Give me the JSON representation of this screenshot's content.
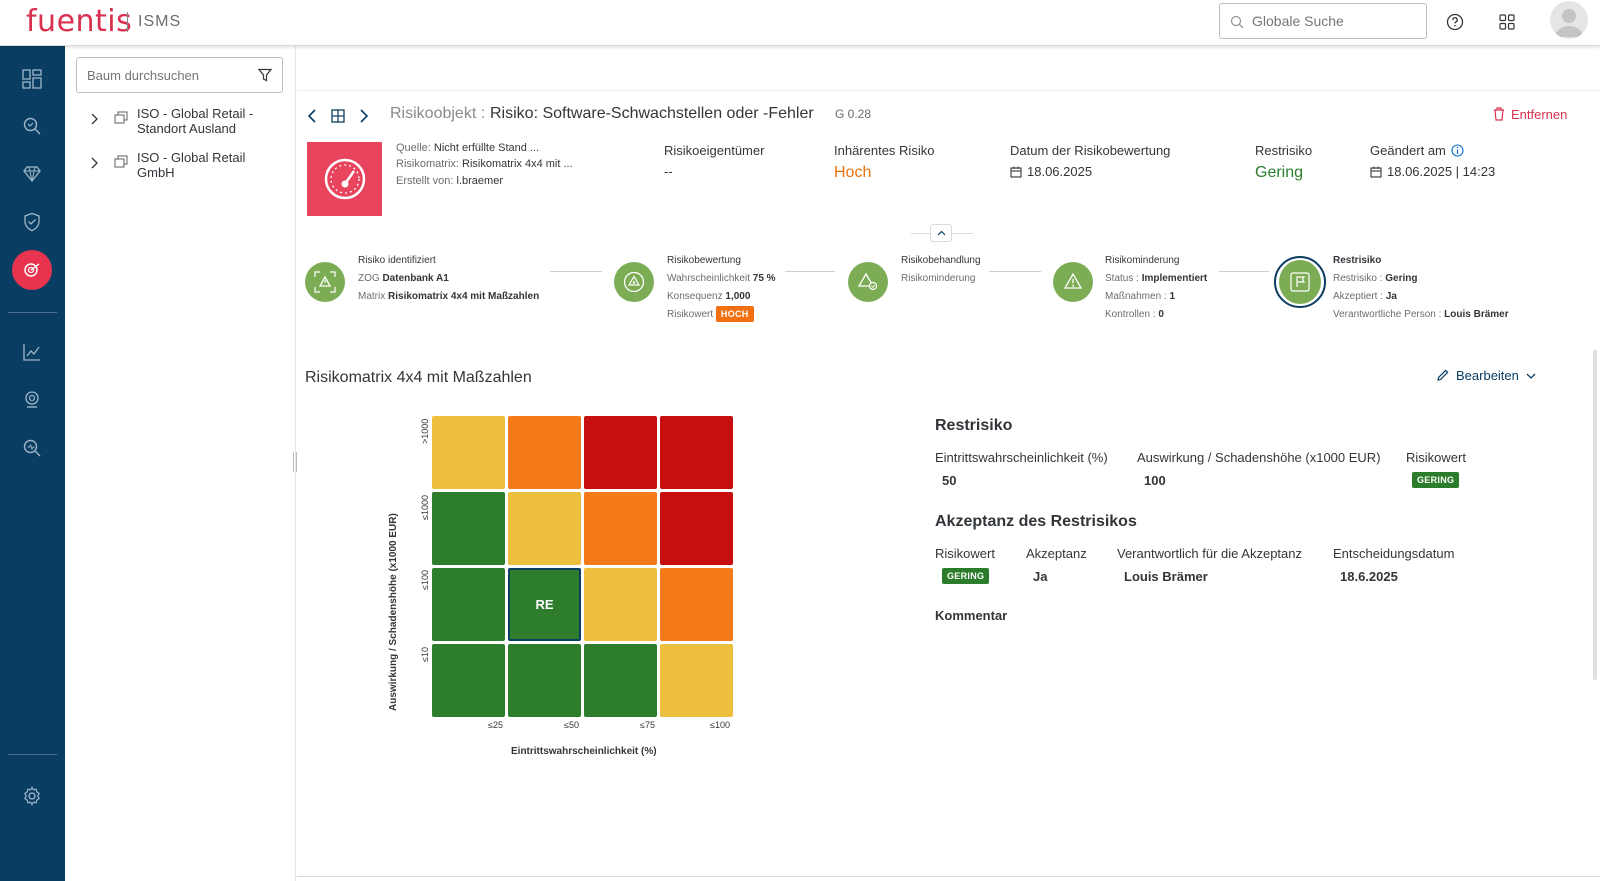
{
  "app": {
    "logo": "fuentis",
    "product": "ISMS"
  },
  "header": {
    "search_placeholder": "Globale Suche",
    "icons": [
      "help-icon",
      "apps-grid-icon",
      "user-avatar"
    ]
  },
  "leftnav": {
    "items": [
      "dashboard-icon",
      "search-risk-icon",
      "diamond-icon",
      "shield-check-icon",
      "risk-target-icon",
      "chart-icon",
      "audit-icon",
      "search-analyze-icon",
      "settings-icon"
    ],
    "active": "risk-target-icon"
  },
  "tree": {
    "search_placeholder": "Baum durchsuchen",
    "nodes": [
      {
        "line1": "ISO - Global Retail -",
        "line2": "Standort Ausland"
      },
      {
        "line1": "ISO - Global Retail",
        "line2": "GmbH"
      }
    ]
  },
  "object": {
    "type": "Risikoobjekt :",
    "title": "Risiko: Software-Schwachstellen oder -Fehler",
    "version": "G 0.28",
    "remove_label": "Entfernen",
    "meta": {
      "source_label": "Quelle:",
      "source_value": "Nicht erfüllte Stand ...",
      "matrix_label": "Risikomatrix:",
      "matrix_value": "Risikomatrix 4x4 mit ...",
      "created_label": "Erstellt von:",
      "created_value": "l.braemer"
    },
    "fields": [
      {
        "label": "Risikoeigentümer",
        "value": "--"
      },
      {
        "label": "Inhärentes Risiko",
        "value": "Hoch"
      },
      {
        "label": "Datum der Risikobewertung",
        "value": "18.06.2025"
      },
      {
        "label": "Restrisiko",
        "value": "Gering"
      },
      {
        "label": "Geändert am",
        "value": "18.06.2025 | 14:23"
      }
    ]
  },
  "process": {
    "steps": [
      {
        "title": "Risiko identifiziert",
        "l1_label": "ZOG",
        "l1_value": "Datenbank A1",
        "l2_label": "Matrix",
        "l2_value": "Risikomatrix 4x4 mit Maßzahlen"
      },
      {
        "title": "Risikobewertung",
        "l1_label": "Wahrscheinlichkeit",
        "l1_value": "75 %",
        "l2_label": "Konsequenz",
        "l2_value": "1,000",
        "l3_label": "Risikowert",
        "l3_badge": "HOCH"
      },
      {
        "title": "Risikobehandlung",
        "l1_label": "Risikominderung"
      },
      {
        "title": "Risikominderung",
        "l1_label": "Status :",
        "l1_value": "Implementiert",
        "l2_label": "Maßnahmen :",
        "l2_value": "1",
        "l3_label": "Kontrollen :",
        "l3_value": "0"
      },
      {
        "title": "Restrisiko",
        "l1_label": "Restrisiko :",
        "l1_value": "Gering",
        "l2_label": "Akzeptiert :",
        "l2_value": "Ja",
        "l3_label": "Verantwortliche Person :",
        "l3_value": "Louis Brämer"
      }
    ]
  },
  "matrix_section": {
    "title": "Risikomatrix 4x4 mit Maßzahlen",
    "edit_label": "Bearbeiten",
    "y_axis_label": "Auswirkung / Schadenshöhe (x1000 EUR)",
    "x_axis_label": "Eintrittswahrscheinlichkeit (%)",
    "y_ticks": [
      ">1000",
      "≤1000",
      "≤100",
      "≤10"
    ],
    "x_ticks": [
      "≤25",
      "≤50",
      "≤75",
      "≤100"
    ],
    "rows": [
      [
        "yellow",
        "orange",
        "red",
        "red"
      ],
      [
        "green",
        "yellow",
        "orange",
        "red"
      ],
      [
        "green",
        "green",
        "yellow",
        "orange"
      ],
      [
        "green",
        "green",
        "green",
        "yellow"
      ]
    ],
    "selected_marker": "RE"
  },
  "residual": {
    "title": "Restrisiko",
    "prob_label": "Eintrittswahrscheinlichkeit (%)",
    "prob_value": "50",
    "impact_label": "Auswirkung / Schadenshöhe (x1000 EUR)",
    "impact_value": "100",
    "risk_label": "Risikowert",
    "risk_badge": "GERING"
  },
  "acceptance": {
    "title": "Akzeptanz des Restrisikos",
    "risk_label": "Risikowert",
    "risk_badge": "GERING",
    "accept_label": "Akzeptanz",
    "accept_value": "Ja",
    "resp_label": "Verantwortlich für die Akzeptanz",
    "resp_value": "Louis Brämer",
    "date_label": "Entscheidungsdatum",
    "date_value": "18.6.2025",
    "comment_label": "Kommentar"
  },
  "colors": {
    "brand": "#d8304e",
    "nav": "#0a3d62",
    "high": "#e9730c",
    "low": "#2b7d2b",
    "step": "#7cad54"
  }
}
